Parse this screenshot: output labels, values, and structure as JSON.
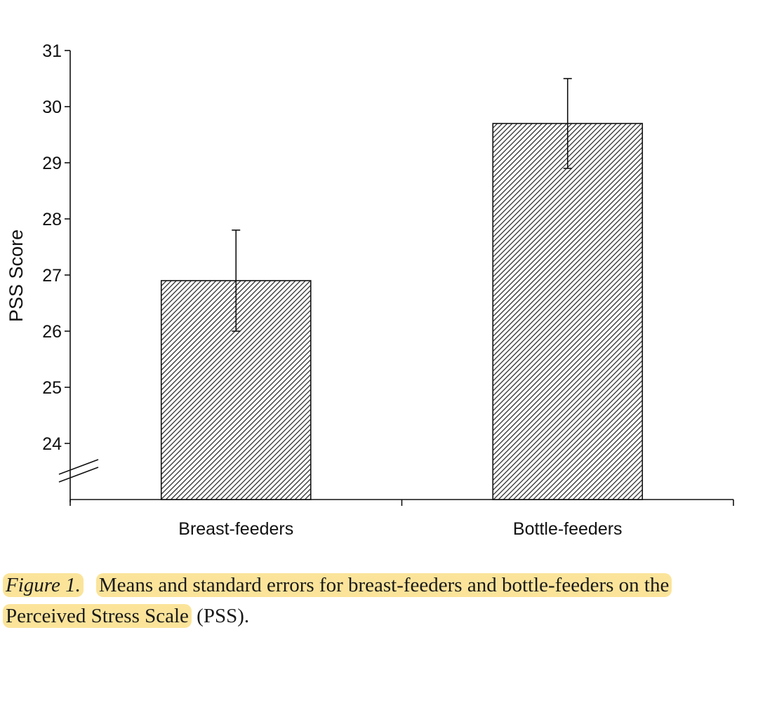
{
  "chart_data": {
    "type": "bar",
    "categories": [
      "Breast-feeders",
      "Bottle-feeders"
    ],
    "values": [
      26.9,
      29.7
    ],
    "errors": [
      0.9,
      0.8
    ],
    "ylabel": "PSS Score",
    "xlabel": "",
    "ylim": [
      23,
      31
    ],
    "yticks": [
      24,
      25,
      26,
      27,
      28,
      29,
      30,
      31
    ],
    "axis_break": true,
    "grid": false,
    "bar_fill": "diagonal-hatch",
    "bar_color": "#222222"
  },
  "caption": {
    "label": "Figure 1.",
    "text_highlighted": "Means and standard errors for breast-feeders and bottle-feeders on the Perceived Stress Scale",
    "text_tail": "(PSS).",
    "highlight_color": "#fbe49a"
  }
}
